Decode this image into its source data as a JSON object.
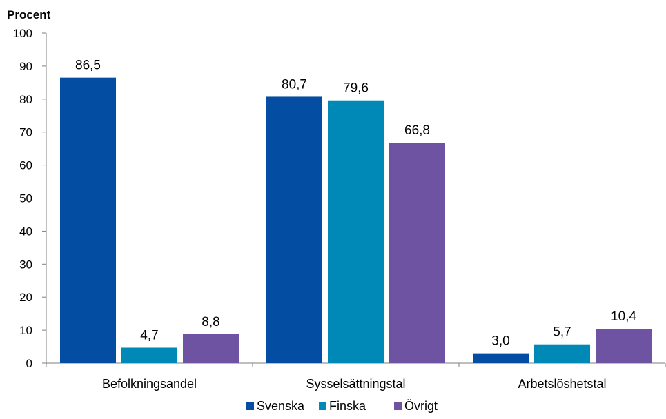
{
  "chart_data": {
    "type": "bar",
    "ylabel": "Procent",
    "xlabel": "",
    "title": "",
    "ylim": [
      0,
      100
    ],
    "yticks": [
      0,
      10,
      20,
      30,
      40,
      50,
      60,
      70,
      80,
      90,
      100
    ],
    "categories": [
      "Befolkningsandel",
      "Sysselsättningstal",
      "Arbetslöshetstal"
    ],
    "series": [
      {
        "name": "Svenska",
        "values": [
          86.5,
          80.7,
          3.0
        ],
        "labels": [
          "86,5",
          "80,7",
          "3,0"
        ],
        "color": "#034ea2"
      },
      {
        "name": "Finska",
        "values": [
          4.7,
          79.6,
          5.7
        ],
        "labels": [
          "4,7",
          "79,6",
          "5,7"
        ],
        "color": "#0089b6"
      },
      {
        "name": "Övrigt",
        "values": [
          8.8,
          66.8,
          10.4
        ],
        "labels": [
          "8,8",
          "66,8",
          "10,4"
        ],
        "color": "#6d53a1"
      }
    ],
    "grid": false,
    "legend_position": "bottom"
  }
}
